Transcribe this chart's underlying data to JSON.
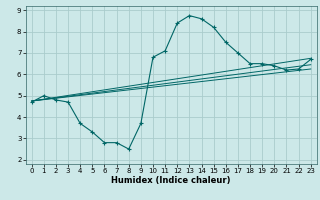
{
  "title": "",
  "xlabel": "Humidex (Indice chaleur)",
  "ylabel": "",
  "bg_color": "#cce8e8",
  "grid_color": "#aacccc",
  "line_color": "#006666",
  "xlim": [
    -0.5,
    23.5
  ],
  "ylim": [
    1.8,
    9.2
  ],
  "yticks": [
    2,
    3,
    4,
    5,
    6,
    7,
    8,
    9
  ],
  "xticks": [
    0,
    1,
    2,
    3,
    4,
    5,
    6,
    7,
    8,
    9,
    10,
    11,
    12,
    13,
    14,
    15,
    16,
    17,
    18,
    19,
    20,
    21,
    22,
    23
  ],
  "series": [
    [
      0,
      4.7
    ],
    [
      1,
      5.0
    ],
    [
      2,
      4.8
    ],
    [
      3,
      4.7
    ],
    [
      4,
      3.7
    ],
    [
      5,
      3.3
    ],
    [
      6,
      2.8
    ],
    [
      7,
      2.8
    ],
    [
      8,
      2.5
    ],
    [
      9,
      3.7
    ],
    [
      10,
      6.8
    ],
    [
      11,
      7.1
    ],
    [
      12,
      8.4
    ],
    [
      13,
      8.75
    ],
    [
      14,
      8.6
    ],
    [
      15,
      8.2
    ],
    [
      16,
      7.5
    ],
    [
      17,
      7.0
    ],
    [
      18,
      6.5
    ],
    [
      19,
      6.5
    ],
    [
      20,
      6.4
    ],
    [
      21,
      6.2
    ],
    [
      22,
      6.25
    ],
    [
      23,
      6.7
    ]
  ],
  "linear_lines": [
    {
      "x_start": 0,
      "y_start": 4.75,
      "x_end": 23,
      "y_end": 6.75
    },
    {
      "x_start": 0,
      "y_start": 4.75,
      "x_end": 23,
      "y_end": 6.45
    },
    {
      "x_start": 0,
      "y_start": 4.75,
      "x_end": 23,
      "y_end": 6.25
    }
  ]
}
